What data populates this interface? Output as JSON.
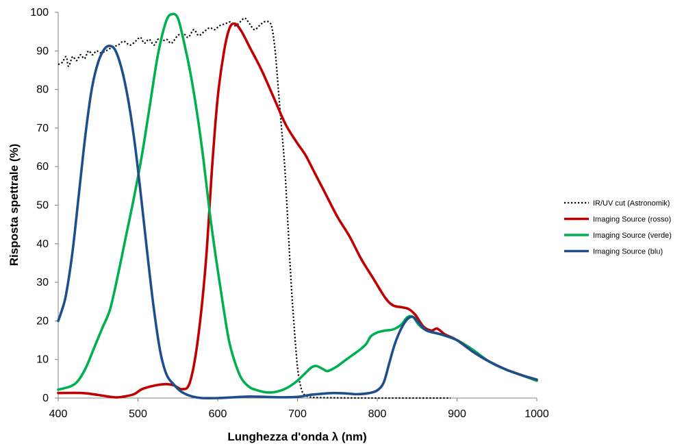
{
  "chart_data": {
    "type": "line",
    "title": "",
    "xlabel": "Lunghezza d'onda λ (nm)",
    "ylabel": "Risposta spettrale (%)",
    "xlim": [
      400,
      1000
    ],
    "ylim": [
      0,
      100
    ],
    "x_ticks": [
      400,
      500,
      600,
      700,
      800,
      900,
      1000
    ],
    "y_ticks": [
      0,
      10,
      20,
      30,
      40,
      50,
      60,
      70,
      80,
      90,
      100
    ],
    "grid": false,
    "legend_position": "right",
    "series": [
      {
        "name": "IR/UV cut (Astronomik)",
        "color": "#000000",
        "style": "dotted",
        "points": [
          [
            400,
            86.5
          ],
          [
            405,
            87
          ],
          [
            410,
            88.5
          ],
          [
            413,
            86
          ],
          [
            418,
            88.5
          ],
          [
            423,
            87.5
          ],
          [
            428,
            89
          ],
          [
            433,
            88
          ],
          [
            438,
            90
          ],
          [
            443,
            89
          ],
          [
            448,
            90
          ],
          [
            453,
            89.5
          ],
          [
            460,
            90
          ],
          [
            468,
            91
          ],
          [
            475,
            91.5
          ],
          [
            482,
            92.5
          ],
          [
            490,
            91.5
          ],
          [
            497,
            92.5
          ],
          [
            503,
            93.5
          ],
          [
            508,
            92
          ],
          [
            514,
            93
          ],
          [
            520,
            91.5
          ],
          [
            525,
            93
          ],
          [
            530,
            92.5
          ],
          [
            536,
            93
          ],
          [
            542,
            92
          ],
          [
            550,
            94
          ],
          [
            557,
            94.5
          ],
          [
            563,
            93.5
          ],
          [
            570,
            95.5
          ],
          [
            576,
            94
          ],
          [
            583,
            95
          ],
          [
            590,
            96
          ],
          [
            596,
            95.5
          ],
          [
            602,
            96.5
          ],
          [
            609,
            97
          ],
          [
            616,
            97.5
          ],
          [
            622,
            96.5
          ],
          [
            628,
            97.5
          ],
          [
            634,
            98.5
          ],
          [
            640,
            97
          ],
          [
            646,
            95.5
          ],
          [
            652,
            96.5
          ],
          [
            658,
            97.5
          ],
          [
            664,
            97.5
          ],
          [
            668,
            96
          ],
          [
            672,
            90
          ],
          [
            676,
            80
          ],
          [
            680,
            70
          ],
          [
            684,
            60
          ],
          [
            688,
            45
          ],
          [
            692,
            30
          ],
          [
            696,
            18
          ],
          [
            700,
            8
          ],
          [
            704,
            3
          ],
          [
            708,
            1
          ],
          [
            715,
            0.3
          ],
          [
            730,
            0.1
          ],
          [
            800,
            0
          ],
          [
            850,
            0
          ],
          [
            892,
            0
          ]
        ]
      },
      {
        "name": "Imaging Source (rosso)",
        "color": "#c00000",
        "style": "solid",
        "points": [
          [
            400,
            1.3
          ],
          [
            430,
            1.3
          ],
          [
            450,
            0.8
          ],
          [
            470,
            0.2
          ],
          [
            480,
            0.3
          ],
          [
            495,
            1
          ],
          [
            505,
            2.3
          ],
          [
            520,
            3.2
          ],
          [
            535,
            3.6
          ],
          [
            545,
            3.3
          ],
          [
            555,
            2.3
          ],
          [
            565,
            4
          ],
          [
            575,
            15
          ],
          [
            585,
            35
          ],
          [
            593,
            60
          ],
          [
            600,
            78
          ],
          [
            608,
            90
          ],
          [
            615,
            96
          ],
          [
            622,
            97
          ],
          [
            630,
            95
          ],
          [
            640,
            91
          ],
          [
            655,
            85
          ],
          [
            670,
            78
          ],
          [
            685,
            71
          ],
          [
            700,
            66
          ],
          [
            710,
            63
          ],
          [
            720,
            59
          ],
          [
            735,
            53
          ],
          [
            750,
            47
          ],
          [
            765,
            42
          ],
          [
            780,
            36
          ],
          [
            795,
            31
          ],
          [
            810,
            26
          ],
          [
            820,
            24
          ],
          [
            832,
            23.5
          ],
          [
            840,
            23
          ],
          [
            848,
            21.5
          ],
          [
            858,
            18.5
          ],
          [
            868,
            17.5
          ],
          [
            875,
            18
          ],
          [
            885,
            16.5
          ],
          [
            900,
            15
          ],
          [
            920,
            12
          ],
          [
            940,
            9.5
          ],
          [
            960,
            7.5
          ],
          [
            980,
            6
          ],
          [
            1000,
            4.5
          ]
        ]
      },
      {
        "name": "Imaging Source (verde)",
        "color": "#00b050",
        "style": "solid",
        "points": [
          [
            400,
            2.2
          ],
          [
            415,
            3
          ],
          [
            425,
            4.5
          ],
          [
            435,
            8
          ],
          [
            445,
            13
          ],
          [
            455,
            18
          ],
          [
            465,
            23
          ],
          [
            475,
            32
          ],
          [
            485,
            42
          ],
          [
            495,
            52
          ],
          [
            505,
            63
          ],
          [
            515,
            76
          ],
          [
            525,
            89
          ],
          [
            535,
            97.5
          ],
          [
            542,
            99.5
          ],
          [
            550,
            98.5
          ],
          [
            558,
            92
          ],
          [
            566,
            84
          ],
          [
            574,
            74
          ],
          [
            582,
            62
          ],
          [
            590,
            48
          ],
          [
            598,
            36
          ],
          [
            606,
            25
          ],
          [
            614,
            15
          ],
          [
            622,
            9
          ],
          [
            630,
            5
          ],
          [
            640,
            2.8
          ],
          [
            650,
            2
          ],
          [
            660,
            1.5
          ],
          [
            670,
            1.5
          ],
          [
            680,
            2
          ],
          [
            690,
            3
          ],
          [
            700,
            4.5
          ],
          [
            710,
            6.5
          ],
          [
            718,
            8
          ],
          [
            724,
            8.3
          ],
          [
            732,
            7.5
          ],
          [
            738,
            7
          ],
          [
            748,
            8
          ],
          [
            758,
            9.5
          ],
          [
            768,
            11
          ],
          [
            778,
            12.5
          ],
          [
            786,
            14
          ],
          [
            792,
            16
          ],
          [
            800,
            17
          ],
          [
            810,
            17.5
          ],
          [
            820,
            17.8
          ],
          [
            830,
            19
          ],
          [
            838,
            21
          ],
          [
            845,
            21
          ],
          [
            852,
            19
          ],
          [
            862,
            17.5
          ],
          [
            880,
            16.5
          ],
          [
            900,
            15
          ],
          [
            920,
            12.5
          ],
          [
            940,
            9.5
          ],
          [
            960,
            7.5
          ],
          [
            980,
            6
          ],
          [
            1000,
            4.5
          ]
        ]
      },
      {
        "name": "Imaging Source (blu)",
        "color": "#1f4e8c",
        "style": "solid",
        "points": [
          [
            400,
            20
          ],
          [
            405,
            23
          ],
          [
            410,
            27
          ],
          [
            418,
            38
          ],
          [
            426,
            53
          ],
          [
            434,
            68
          ],
          [
            442,
            80
          ],
          [
            450,
            87
          ],
          [
            458,
            90.5
          ],
          [
            465,
            91.3
          ],
          [
            472,
            90
          ],
          [
            480,
            85
          ],
          [
            488,
            77
          ],
          [
            496,
            66
          ],
          [
            504,
            52
          ],
          [
            512,
            37
          ],
          [
            520,
            23
          ],
          [
            528,
            12
          ],
          [
            536,
            6
          ],
          [
            545,
            3.5
          ],
          [
            552,
            2
          ],
          [
            560,
            1
          ],
          [
            570,
            0.3
          ],
          [
            580,
            0
          ],
          [
            600,
            0
          ],
          [
            620,
            0.2
          ],
          [
            640,
            0.4
          ],
          [
            660,
            0.3
          ],
          [
            680,
            0.2
          ],
          [
            700,
            0.3
          ],
          [
            715,
            0.8
          ],
          [
            730,
            1.1
          ],
          [
            745,
            1.3
          ],
          [
            760,
            1.2
          ],
          [
            775,
            1
          ],
          [
            790,
            1.3
          ],
          [
            800,
            2
          ],
          [
            808,
            4
          ],
          [
            815,
            9
          ],
          [
            822,
            14
          ],
          [
            830,
            18
          ],
          [
            838,
            20.5
          ],
          [
            845,
            21
          ],
          [
            852,
            19.5
          ],
          [
            862,
            17.5
          ],
          [
            880,
            16.5
          ],
          [
            900,
            15
          ],
          [
            920,
            12
          ],
          [
            940,
            9.5
          ],
          [
            960,
            7.5
          ],
          [
            980,
            6
          ],
          [
            1000,
            4.8
          ]
        ]
      }
    ]
  }
}
